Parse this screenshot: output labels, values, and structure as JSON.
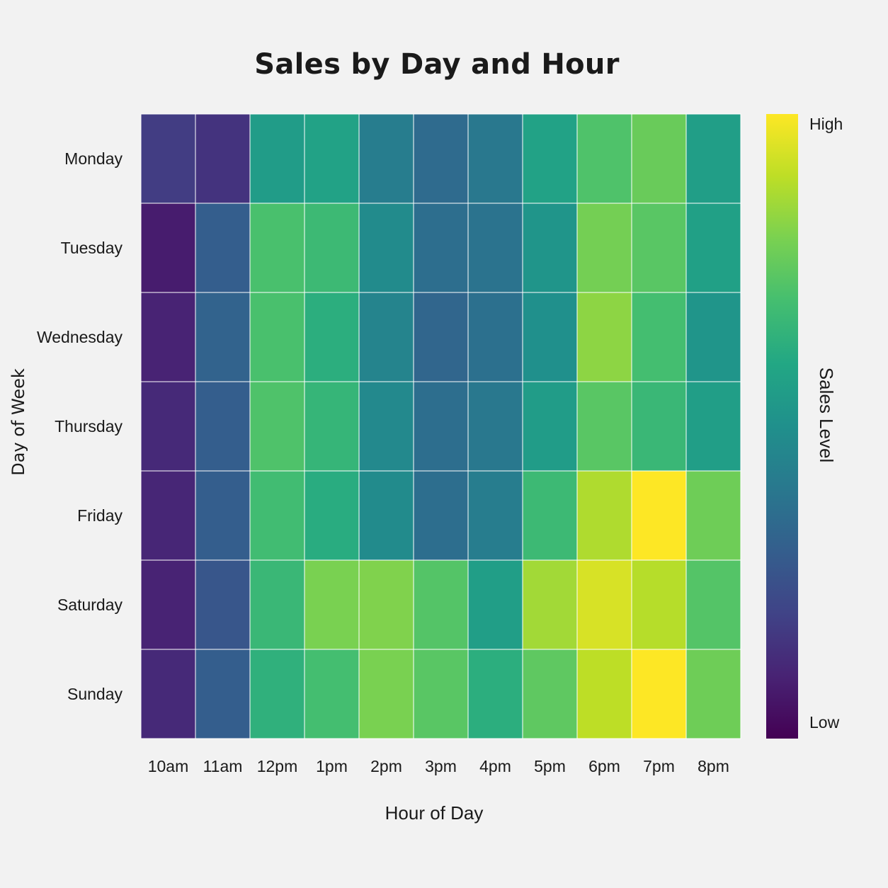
{
  "chart_data": {
    "type": "heatmap",
    "title": "Sales by Day and Hour",
    "xlabel": "Hour of Day",
    "ylabel": "Day of Week",
    "x_categories": [
      "10am",
      "11am",
      "12pm",
      "1pm",
      "2pm",
      "3pm",
      "4pm",
      "5pm",
      "6pm",
      "7pm",
      "8pm"
    ],
    "y_categories": [
      "Monday",
      "Tuesday",
      "Wednesday",
      "Thursday",
      "Friday",
      "Saturday",
      "Sunday"
    ],
    "values": [
      [
        0.18,
        0.15,
        0.55,
        0.58,
        0.42,
        0.35,
        0.4,
        0.58,
        0.72,
        0.77,
        0.56
      ],
      [
        0.08,
        0.3,
        0.71,
        0.68,
        0.48,
        0.36,
        0.38,
        0.52,
        0.79,
        0.74,
        0.57
      ],
      [
        0.1,
        0.32,
        0.71,
        0.63,
        0.45,
        0.33,
        0.37,
        0.5,
        0.83,
        0.7,
        0.52
      ],
      [
        0.12,
        0.3,
        0.72,
        0.66,
        0.47,
        0.36,
        0.4,
        0.55,
        0.74,
        0.67,
        0.56
      ],
      [
        0.11,
        0.3,
        0.69,
        0.62,
        0.48,
        0.36,
        0.42,
        0.68,
        0.88,
        1.0,
        0.78
      ],
      [
        0.1,
        0.27,
        0.67,
        0.8,
        0.81,
        0.73,
        0.56,
        0.86,
        0.94,
        0.89,
        0.73
      ],
      [
        0.12,
        0.3,
        0.64,
        0.7,
        0.8,
        0.74,
        0.63,
        0.75,
        0.9,
        1.0,
        0.78
      ]
    ],
    "colormap": "viridis",
    "colorbar": {
      "label": "Sales Level",
      "high_label": "High",
      "low_label": "Low"
    },
    "background": "#f2f2f2",
    "cell_border_color": "#ffffff"
  }
}
